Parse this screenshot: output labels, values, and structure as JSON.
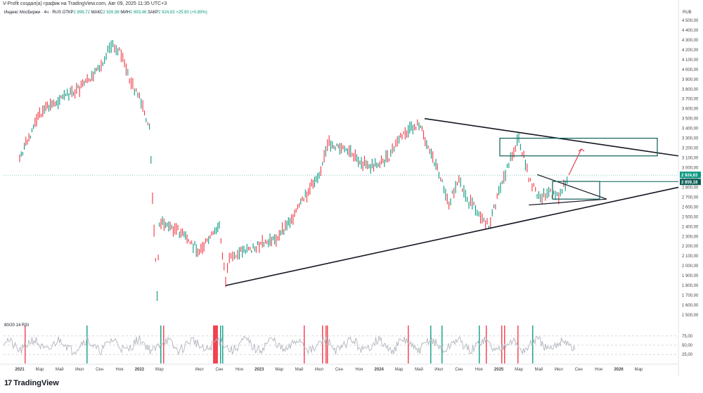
{
  "header": {
    "caption": "V-Profit создал(а) график на TradingView.com, Авг 09, 2025 11:35 UTC+3"
  },
  "legend": {
    "instrument": "Индекс МосБиржи · 4ч · RUS",
    "open_label": "ОТКР",
    "open": "2 898,72",
    "high_label": "МАКС",
    "high": "2 926,98",
    "low_label": "МИН",
    "low": "2 893,46",
    "close_label": "ЗАКР",
    "close": "2 924,63",
    "change": "+25,90 (+0,89%)"
  },
  "currency": "RUB",
  "rsi_label": "80/20 14 RSI",
  "brand": "TradingView",
  "colors": {
    "up": "#089981",
    "down": "#f23645",
    "rsi": "#b2b5be",
    "line": "#131722",
    "box": "#0c5e57",
    "arrow": "#e0454f",
    "price_badge": "#089981"
  },
  "chart_data": {
    "type": "line",
    "y_axis_ticks": [
      "1 500,00",
      "1 600,00",
      "1 700,00",
      "1 800,00",
      "1 900,00",
      "2 000,00",
      "2 100,00",
      "2 200,00",
      "2 300,00",
      "2 400,00",
      "2 500,00",
      "2 600,00",
      "2 700,00",
      "2 800,00",
      "2 900,00",
      "3 000,00",
      "3 100,00",
      "3 200,00",
      "3 300,00",
      "3 400,00",
      "3 500,00",
      "3 600,00",
      "3 700,00",
      "3 800,00",
      "3 900,00",
      "4 000,00",
      "4 100,00",
      "4 200,00",
      "4 300,00",
      "4 400,00",
      "4 500,00"
    ],
    "ylim": [
      1450,
      4550
    ],
    "x_axis_labels": [
      "2021",
      "Мар",
      "Май",
      "Июл",
      "Сен",
      "Ноя",
      "2022",
      "Мар",
      "Июл",
      "Сен",
      "Ноя",
      "2023",
      "Мар",
      "Май",
      "Июл",
      "Сен",
      "Ноя",
      "2024",
      "Мар",
      "Май",
      "Июл",
      "Сен",
      "Ноя",
      "2025",
      "Мар",
      "Май",
      "Июл",
      "Сен",
      "Ноя",
      "2026",
      "Мар"
    ],
    "x_axis_bold": [
      "2021",
      "2022",
      "2023",
      "2024",
      "2025",
      "2026"
    ],
    "price_series": {
      "name": "Индекс МосБиржи",
      "x": [
        "2021-01",
        "2021-03",
        "2021-05",
        "2021-07",
        "2021-09",
        "2021-10",
        "2021-11",
        "2021-12",
        "2022-01",
        "2022-02",
        "2022-02-24",
        "2022-03",
        "2022-05",
        "2022-07",
        "2022-09",
        "2022-09-20",
        "2022-10",
        "2022-11",
        "2023-01",
        "2023-03",
        "2023-05",
        "2023-07",
        "2023-08",
        "2023-10",
        "2023-12",
        "2024-02",
        "2024-03",
        "2024-05",
        "2024-07",
        "2024-08",
        "2024-09",
        "2024-10",
        "2024-11",
        "2024-12",
        "2025-01",
        "2025-02",
        "2025-03",
        "2025-04",
        "2025-05",
        "2025-06",
        "2025-07",
        "2025-08"
      ],
      "values": [
        3100,
        3550,
        3700,
        3800,
        4000,
        4250,
        4200,
        3900,
        3700,
        3400,
        1700,
        2450,
        2350,
        2150,
        2400,
        1850,
        2050,
        2150,
        2200,
        2300,
        2600,
        2950,
        3250,
        3150,
        3000,
        3100,
        3300,
        3450,
        2950,
        2650,
        2850,
        2650,
        2550,
        2400,
        2750,
        3050,
        3300,
        2900,
        2700,
        2750,
        2700,
        2924
      ]
    },
    "annotations": {
      "last_price_label": "2 924,63",
      "second_price_label": "2 859,18",
      "levels": [
        2859.18,
        3150,
        3300
      ]
    },
    "rsi": {
      "name": "RSI",
      "levels": [
        75,
        50,
        25
      ],
      "level_labels": [
        "75,00",
        "50,00",
        "25,00"
      ]
    },
    "grid": false,
    "legend_position": "top-left"
  }
}
